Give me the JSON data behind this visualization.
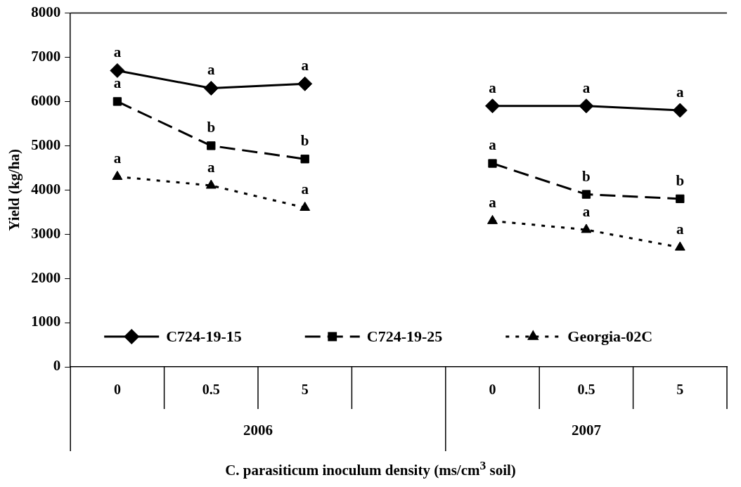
{
  "chart_data": {
    "type": "line",
    "ylabel": "Yield (kg/ha)",
    "xlabel": "C. parasiticum  inoculum density (ms/cm$^{3}$ soil)",
    "categories": [
      "0",
      "0.5",
      "5",
      null,
      "0",
      "0.5",
      "5"
    ],
    "annotations": [
      "2006",
      "2007"
    ],
    "ylim": [
      0,
      8000
    ],
    "yticks": [
      0,
      1000,
      2000,
      3000,
      4000,
      5000,
      6000,
      7000,
      8000
    ],
    "grid": false,
    "legend": "bottom",
    "series": [
      {
        "name": "C724-19-15",
        "color": "#000000",
        "marker": "diamond",
        "line_style": "solid",
        "values": [
          6700,
          6300,
          6400,
          null,
          5900,
          5900,
          5800
        ],
        "value_labels": [
          "a",
          "a",
          "a",
          null,
          "a",
          "a",
          "a"
        ]
      },
      {
        "name": "C724-19-25",
        "color": "#000000",
        "marker": "square",
        "line_style": "dashed",
        "values": [
          6000,
          5000,
          4700,
          null,
          4600,
          3900,
          3800
        ],
        "value_labels": [
          "a",
          "b",
          "b",
          null,
          "a",
          "b",
          "b"
        ]
      },
      {
        "name": "Georgia-02C",
        "color": "#000000",
        "marker": "triangle",
        "line_style": "dotted",
        "values": [
          4300,
          4100,
          3600,
          null,
          3300,
          3100,
          2700
        ],
        "value_labels": [
          "a",
          "a",
          "a",
          null,
          "a",
          "a",
          "a"
        ]
      }
    ]
  }
}
